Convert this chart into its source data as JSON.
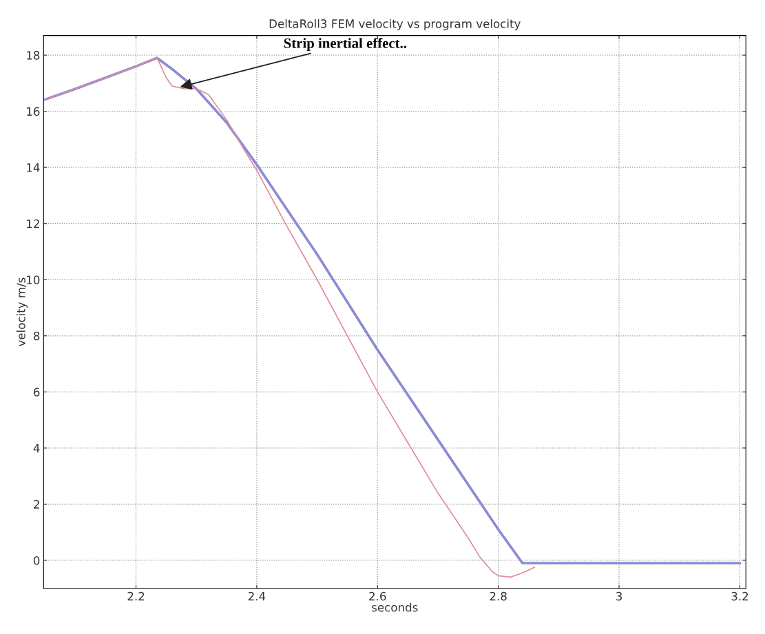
{
  "chart_data": {
    "type": "line",
    "title": "DeltaRoll3 FEM velocity vs program velocity",
    "xlabel": "seconds",
    "ylabel": "velocity m/s",
    "xlim": [
      2.047,
      3.21
    ],
    "ylim": [
      -1,
      18.7
    ],
    "xticks": [
      2.2,
      2.4,
      2.6,
      2.8,
      3,
      3.2
    ],
    "yticks": [
      0,
      2,
      4,
      6,
      8,
      10,
      12,
      14,
      16,
      18
    ],
    "grid": true,
    "line_style": "solid",
    "series": [
      {
        "color": "#8a8ad6",
        "x": [
          2.047,
          2.1,
          2.15,
          2.2,
          2.235,
          2.26,
          2.3,
          2.35,
          2.4,
          2.5,
          2.6,
          2.7,
          2.8,
          2.84,
          2.9,
          3.0,
          3.1,
          3.2
        ],
        "values": [
          16.4,
          16.8,
          17.2,
          17.6,
          17.9,
          17.5,
          16.8,
          15.6,
          14.1,
          10.9,
          7.5,
          4.3,
          1.1,
          -0.1,
          -0.1,
          -0.1,
          -0.1,
          -0.1
        ]
      },
      {
        "color": "#e08a9a",
        "x": [
          2.047,
          2.1,
          2.15,
          2.2,
          2.235,
          2.25,
          2.26,
          2.28,
          2.3,
          2.32,
          2.35,
          2.38,
          2.4,
          2.45,
          2.5,
          2.55,
          2.6,
          2.65,
          2.7,
          2.75,
          2.77,
          2.79,
          2.8,
          2.82,
          2.84,
          2.86
        ],
        "values": [
          16.4,
          16.8,
          17.2,
          17.6,
          17.9,
          17.2,
          16.9,
          16.8,
          16.8,
          16.6,
          15.7,
          14.6,
          13.9,
          11.9,
          10.0,
          8.0,
          6.0,
          4.2,
          2.4,
          0.8,
          0.1,
          -0.4,
          -0.55,
          -0.6,
          -0.45,
          -0.25
        ]
      }
    ],
    "annotations": [
      {
        "text": "Strip inertial effect..",
        "x": 2.27,
        "y": 16.85
      }
    ]
  }
}
